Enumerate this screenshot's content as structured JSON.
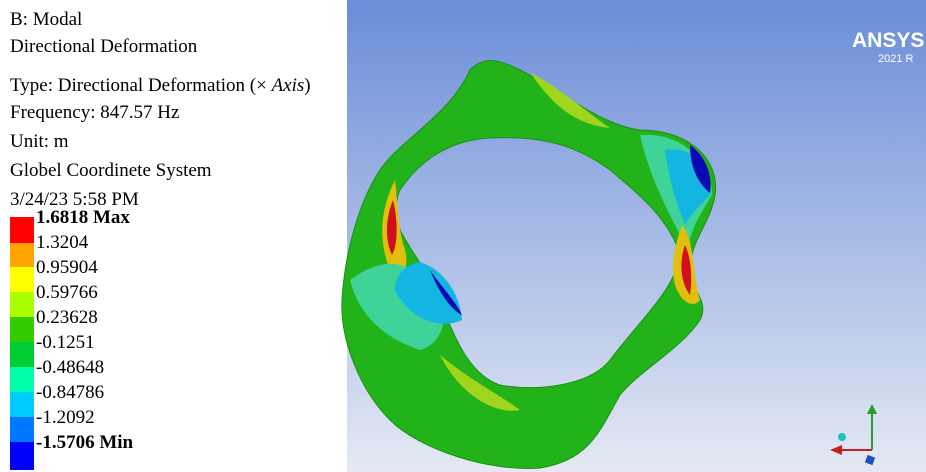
{
  "header": {
    "lines": [
      "B: Modal",
      "Directional Deformation"
    ],
    "type_line": {
      "prefix": "Type: Directional Deformation (× ",
      "axis": "Axis",
      "suffix": ")"
    },
    "info": [
      "Frequency: 847.57 Hz",
      "Unit: m",
      "Globel Coordinete System",
      "3/24/23 5:58 PM"
    ]
  },
  "legend": {
    "entries": [
      "1.6818 Max",
      "1.3204",
      "0.95904",
      "0.59766",
      "0.23628",
      "-0.1251",
      "-0.48648",
      "-0.84786",
      "-1.2092",
      "-1.5706 Min"
    ]
  },
  "logo": {
    "name": "ANSYS",
    "version": "2021 R"
  }
}
